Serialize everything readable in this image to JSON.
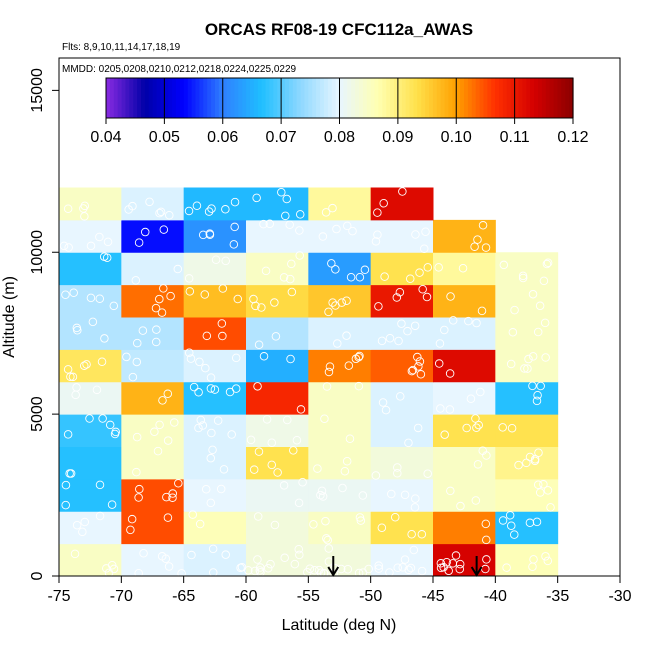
{
  "chart_data": {
    "type": "heatmap",
    "title": "ORCAS RF08-19 CFC112a_AWAS",
    "flights_text": "Flts: 8,9,10,11,14,17,18,19",
    "dates_text": "MMDD: 0205,0208,0210,0212,0218,0224,0225,0229",
    "xlabel": "Latitude (deg N)",
    "ylabel": "Altitude (m)",
    "xlim": [
      -75,
      -30
    ],
    "ylim": [
      0,
      16000
    ],
    "x_ticks": [
      -75,
      -70,
      -65,
      -60,
      -55,
      -50,
      -45,
      -40,
      -35,
      -30
    ],
    "y_ticks": [
      0,
      5000,
      10000,
      15000
    ],
    "colorbar": {
      "min": 0.04,
      "max": 0.12,
      "ticks": [
        "0.04",
        "0.05",
        "0.06",
        "0.07",
        "0.08",
        "0.09",
        "0.10",
        "0.11",
        "0.12"
      ],
      "colors": [
        "#8a2be2",
        "#0000a8",
        "#0000ff",
        "#2f7fff",
        "#1fbfff",
        "#8fd8ff",
        "#e8f6ff",
        "#ffffb0",
        "#ffe04a",
        "#ffa000",
        "#ff3000",
        "#d40000",
        "#8b0000"
      ]
    },
    "lat_bins": [
      -75,
      -70,
      -65,
      -60,
      -55,
      -50,
      -45,
      -40,
      -35
    ],
    "alt_bins": [
      0,
      1000,
      2000,
      3000,
      4000,
      5000,
      6000,
      7000,
      8000,
      9000,
      10000,
      11000,
      12000
    ],
    "values": [
      [
        0.085,
        0.08,
        0.079,
        0.083,
        0.083,
        0.08,
        0.113,
        0.086
      ],
      [
        0.08,
        0.105,
        0.086,
        0.083,
        0.085,
        0.093,
        0.102,
        0.067
      ],
      [
        0.067,
        0.105,
        0.08,
        0.081,
        0.081,
        0.08,
        0.085,
        0.086
      ],
      [
        0.067,
        0.085,
        0.079,
        0.093,
        0.085,
        0.083,
        0.085,
        0.089
      ],
      [
        0.068,
        0.085,
        0.079,
        0.082,
        0.085,
        0.079,
        0.093,
        0.093
      ],
      [
        0.081,
        0.098,
        0.067,
        0.108,
        0.085,
        0.079,
        0.08,
        0.067
      ],
      [
        0.092,
        0.077,
        0.079,
        0.065,
        0.102,
        0.104,
        0.112,
        0.085
      ],
      [
        0.076,
        0.076,
        0.105,
        0.076,
        0.079,
        0.079,
        0.079,
        0.085
      ],
      [
        0.076,
        0.103,
        0.097,
        0.094,
        0.096,
        0.11,
        0.098,
        0.085
      ],
      [
        0.067,
        0.079,
        0.082,
        0.085,
        0.063,
        0.093,
        0.088,
        0.085
      ],
      [
        0.08,
        0.054,
        0.062,
        0.08,
        0.08,
        0.08,
        0.098,
        null
      ],
      [
        0.085,
        0.079,
        0.066,
        0.066,
        0.088,
        0.112,
        null,
        null
      ]
    ],
    "arrows_lat": [
      -53,
      -41.5
    ]
  }
}
